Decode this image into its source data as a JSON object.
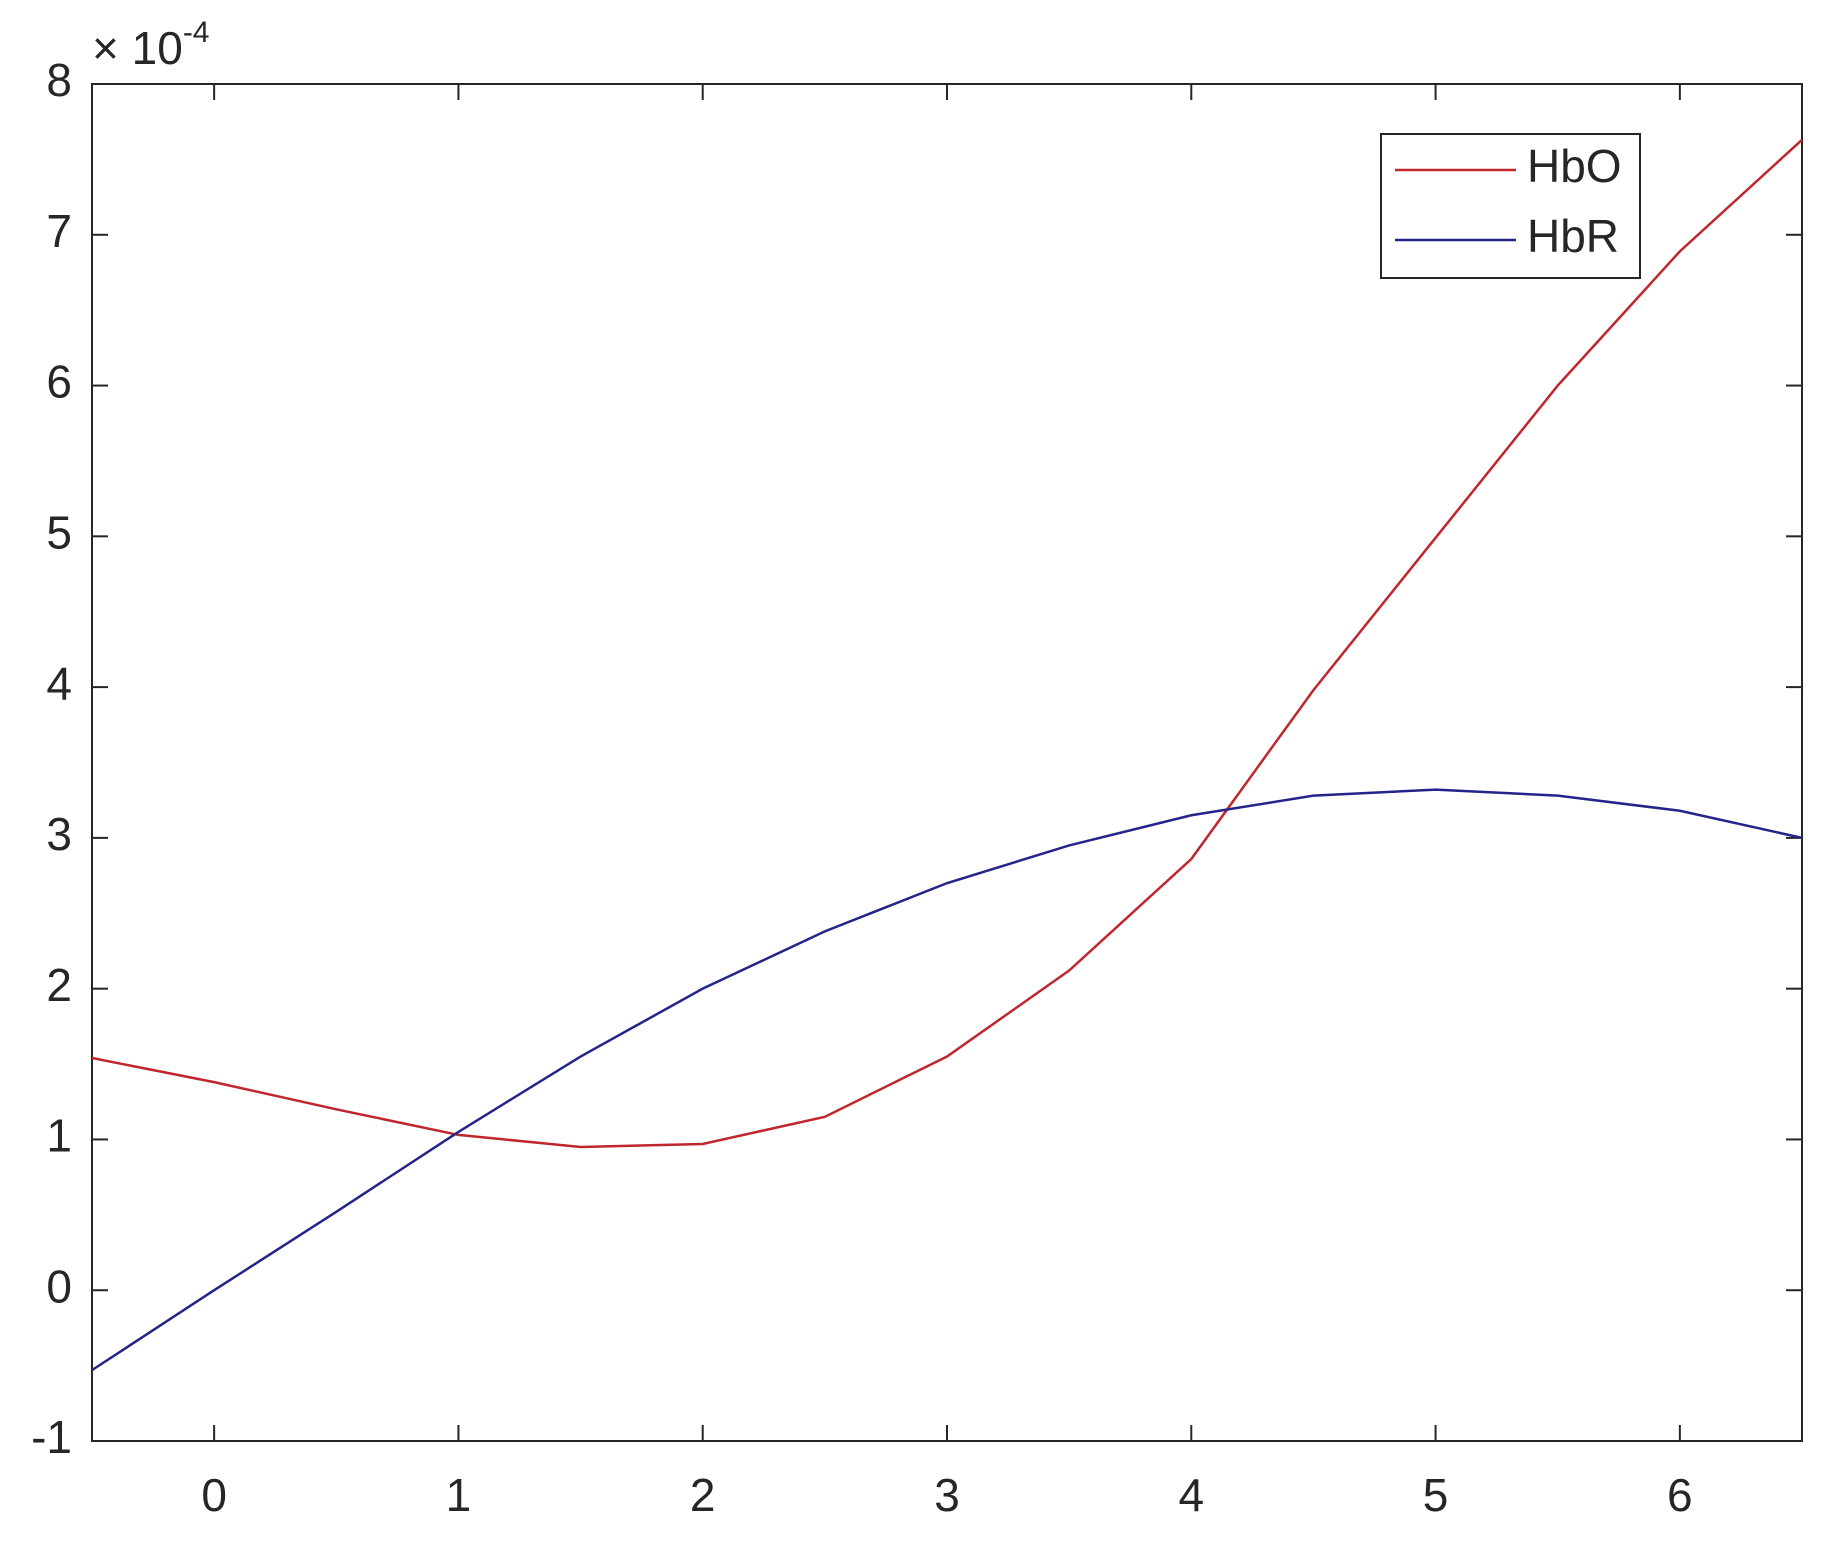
{
  "chart_data": {
    "type": "line",
    "y_multiplier": {
      "base": "× 10",
      "exponent": "-4"
    },
    "x": [
      -0.5,
      0,
      0.5,
      1,
      1.5,
      2,
      2.5,
      3,
      3.5,
      4,
      4.5,
      5,
      5.5,
      6,
      6.5
    ],
    "series": [
      {
        "name": "HbO",
        "color": "#c0262d",
        "values": [
          1.54,
          1.38,
          1.2,
          1.03,
          0.95,
          0.97,
          1.15,
          1.55,
          2.12,
          2.86,
          3.98,
          4.99,
          6.0,
          6.89,
          7.63
        ]
      },
      {
        "name": "HbR",
        "color": "#24248a",
        "values": [
          -0.53,
          0.0,
          0.52,
          1.05,
          1.55,
          2.0,
          2.38,
          2.7,
          2.95,
          3.15,
          3.28,
          3.32,
          3.28,
          3.18,
          3.0
        ]
      }
    ],
    "xlim": [
      -0.5,
      6.5
    ],
    "xticks": [
      0,
      1,
      2,
      3,
      4,
      5,
      6
    ],
    "ylim": [
      -1,
      8
    ],
    "yticks": [
      -1,
      0,
      1,
      2,
      3,
      4,
      5,
      6,
      7,
      8
    ],
    "legend": "top-right"
  }
}
